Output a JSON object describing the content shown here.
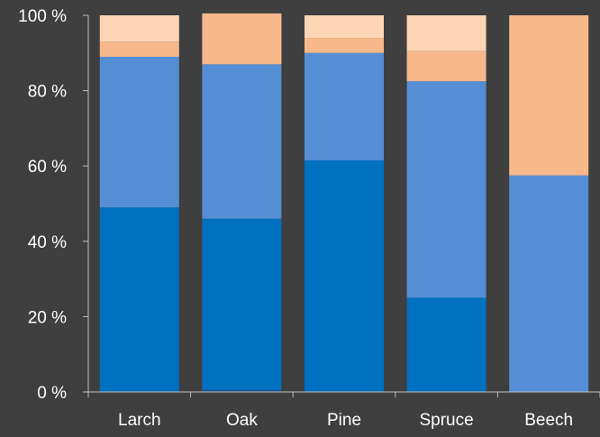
{
  "chart_data": {
    "type": "bar",
    "stacked": true,
    "categories": [
      "Larch",
      "Oak",
      "Pine",
      "Spruce",
      "Beech"
    ],
    "series": [
      {
        "color": "#0070c0",
        "values": [
          49,
          45.5,
          61.5,
          25,
          0
        ]
      },
      {
        "color": "#558ed5",
        "values": [
          40,
          41,
          28.5,
          57.5,
          57.5
        ]
      },
      {
        "color": "#f7b98b",
        "values": [
          4,
          13.5,
          4,
          8,
          42.5
        ]
      },
      {
        "color": "#fcd5b5",
        "values": [
          7,
          0,
          6,
          9.5,
          0
        ]
      }
    ],
    "thin_segment": {
      "color": "#1f4e8c",
      "category": "Oak",
      "value": 0.5
    },
    "yticks": [
      "0 %",
      "20 %",
      "40 %",
      "60 %",
      "80 %",
      "100 %"
    ],
    "ylim": [
      0,
      100
    ],
    "grid": false,
    "colors": {
      "background": "#3f3f3f",
      "text": "#ffffff",
      "axis": "#bfbfbf"
    }
  }
}
